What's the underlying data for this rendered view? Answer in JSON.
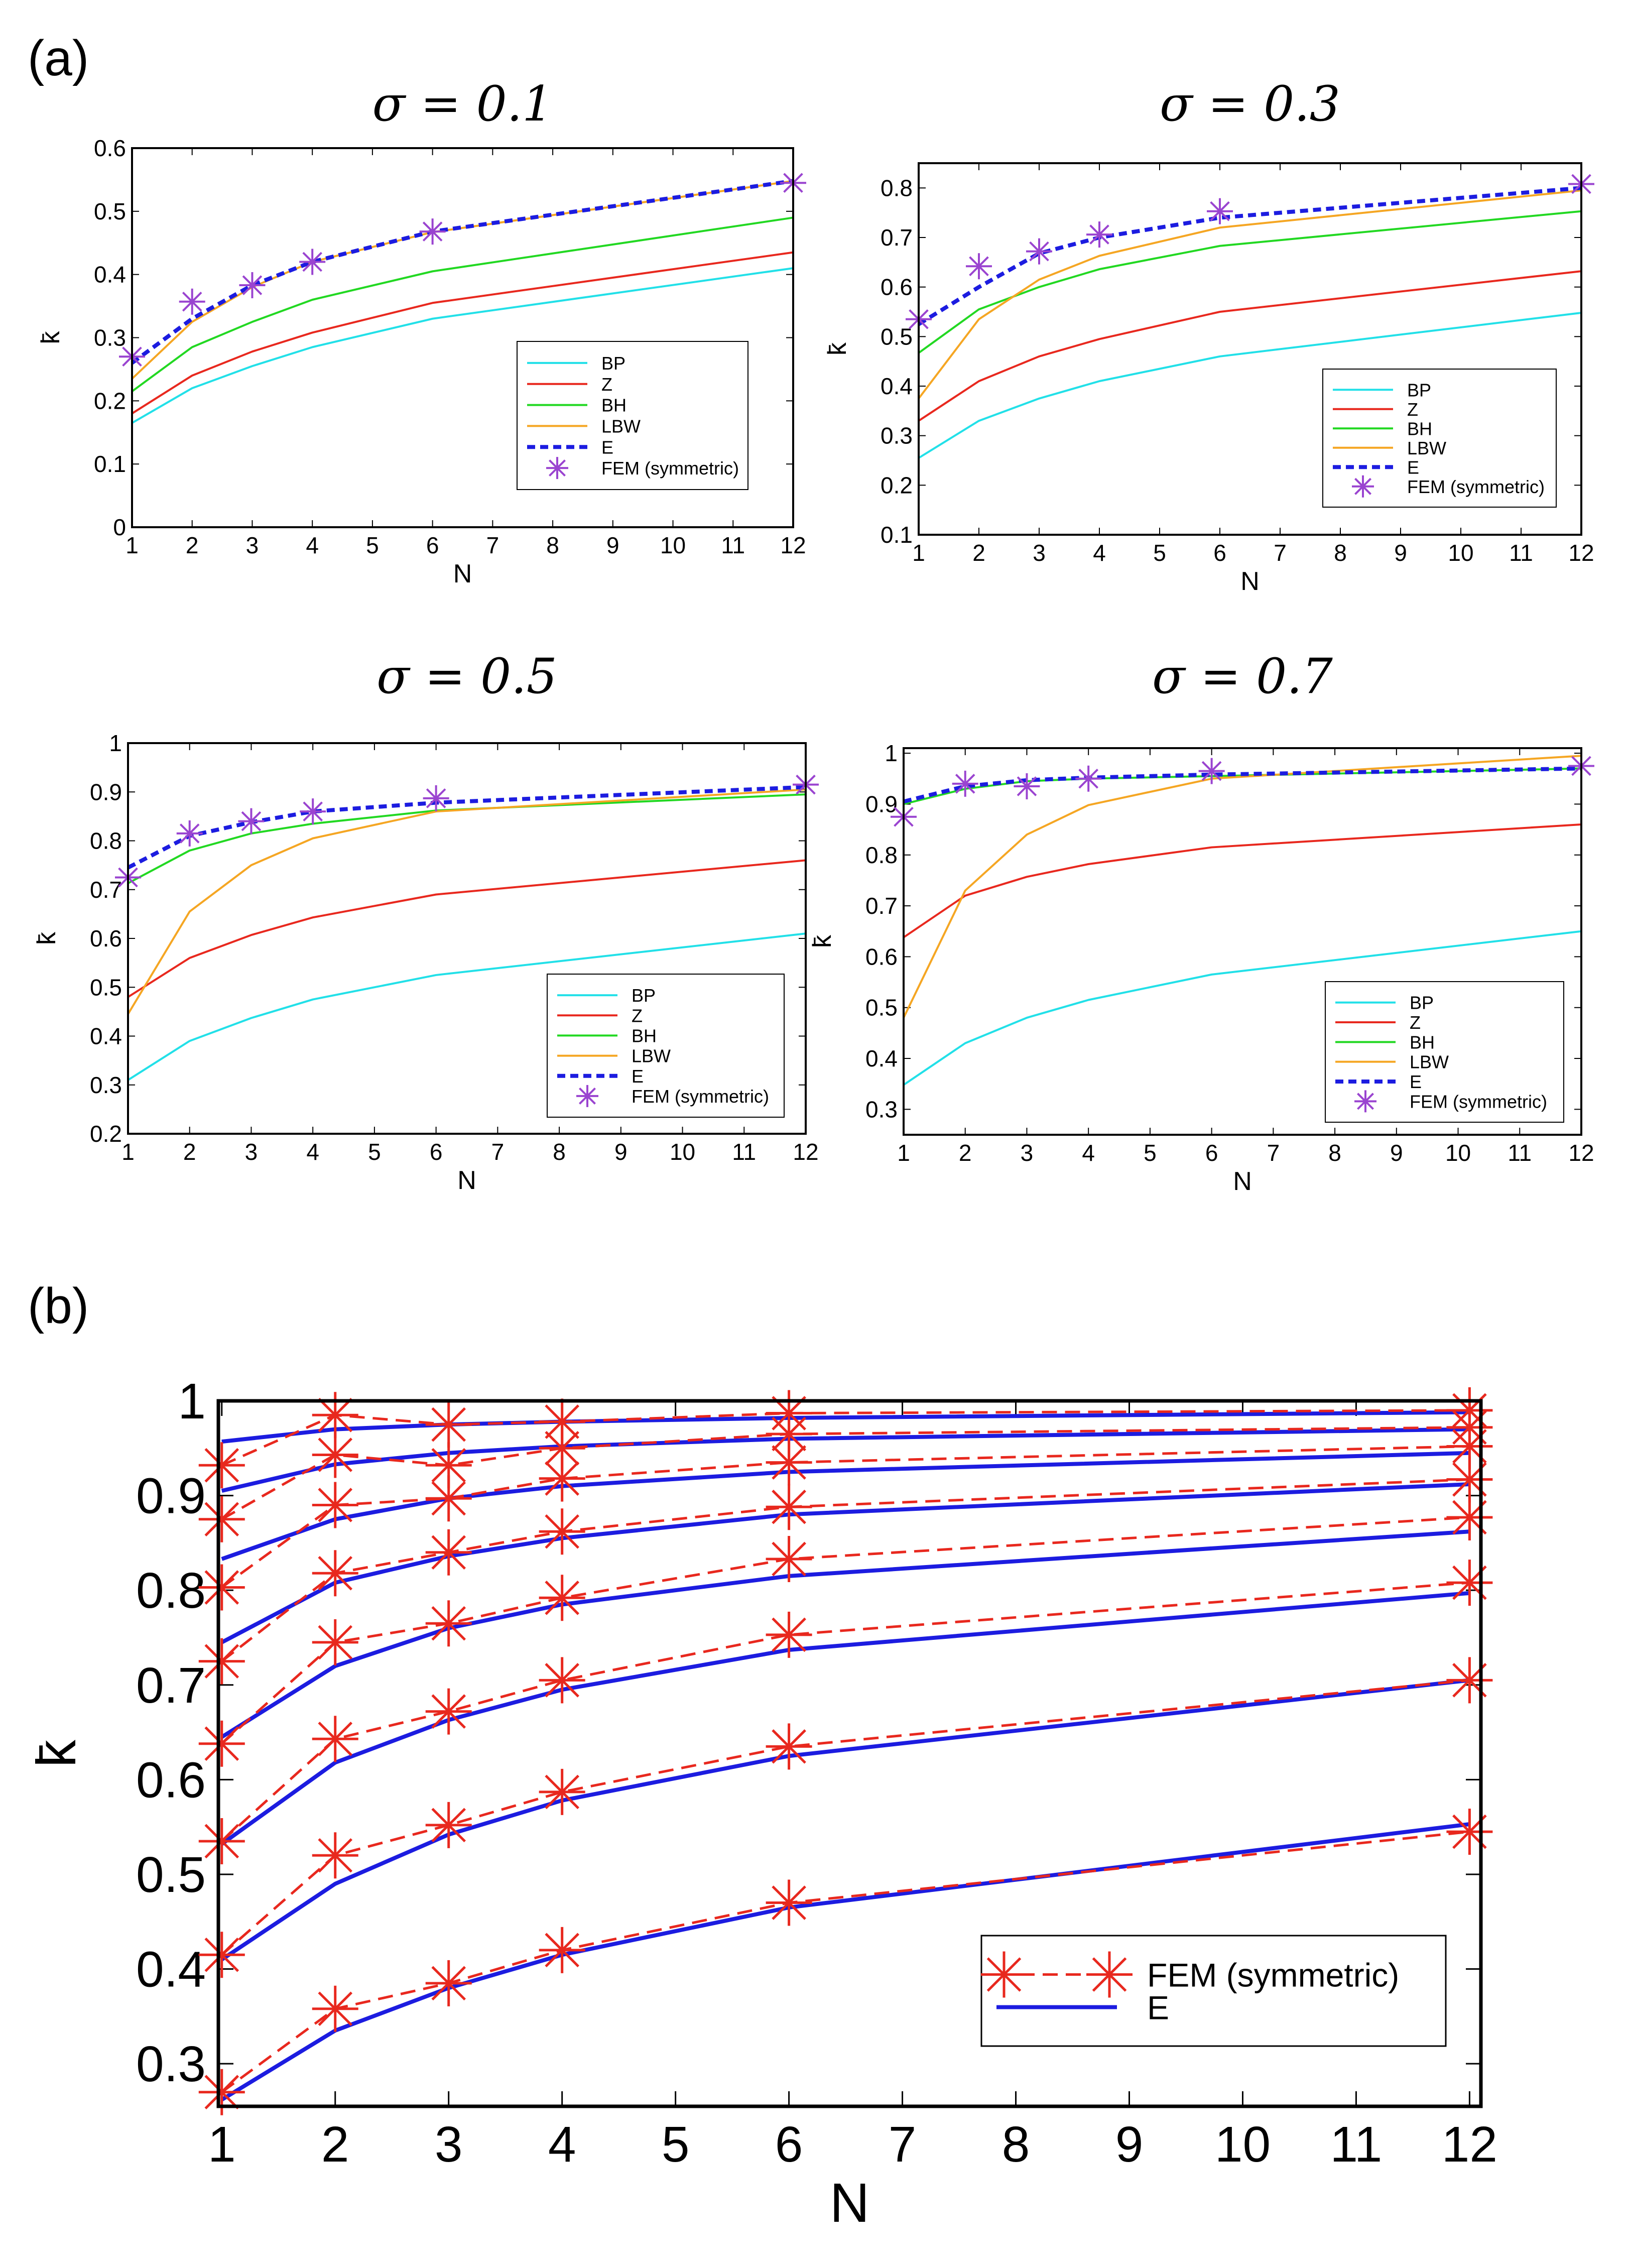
{
  "panel_labels": {
    "a": "(a)",
    "b": "(b)"
  },
  "chart_data": [
    {
      "type": "line",
      "title": "σ = 0.1",
      "xlabel": "N",
      "ylabel": "k̄",
      "x_ticks": [
        1,
        2,
        3,
        4,
        5,
        6,
        7,
        8,
        9,
        10,
        11,
        12
      ],
      "y_ticks": [
        0,
        0.1,
        0.2,
        0.3,
        0.4,
        0.5,
        0.6
      ],
      "xlim": [
        1,
        12
      ],
      "ylim": [
        0,
        0.6
      ],
      "legend_position": "bottom-right",
      "series": [
        {
          "name": "BP",
          "color": "#22e0e8",
          "style": "solid",
          "x": [
            1,
            2,
            3,
            4,
            6,
            12
          ],
          "y": [
            0.165,
            0.22,
            0.255,
            0.285,
            0.33,
            0.41
          ]
        },
        {
          "name": "Z",
          "color": "#e8281e",
          "style": "solid",
          "x": [
            1,
            2,
            3,
            4,
            6,
            12
          ],
          "y": [
            0.18,
            0.24,
            0.278,
            0.308,
            0.355,
            0.435
          ]
        },
        {
          "name": "BH",
          "color": "#22d822",
          "style": "solid",
          "x": [
            1,
            2,
            3,
            4,
            6,
            12
          ],
          "y": [
            0.215,
            0.285,
            0.325,
            0.36,
            0.405,
            0.49
          ]
        },
        {
          "name": "LBW",
          "color": "#f5a623",
          "style": "solid",
          "x": [
            1,
            2,
            3,
            4,
            6,
            12
          ],
          "y": [
            0.235,
            0.325,
            0.38,
            0.42,
            0.467,
            0.548
          ]
        },
        {
          "name": "E",
          "color": "#1c1ce0",
          "style": "dashed",
          "x": [
            1,
            2,
            3,
            4,
            6,
            12
          ],
          "y": [
            0.26,
            0.33,
            0.383,
            0.42,
            0.468,
            0.548
          ]
        },
        {
          "name": "FEM (symmetric)",
          "color": "#9a44d0",
          "style": "marker",
          "x": [
            1,
            2,
            3,
            4,
            6,
            12
          ],
          "y": [
            0.27,
            0.357,
            0.383,
            0.42,
            0.468,
            0.545
          ]
        }
      ]
    },
    {
      "type": "line",
      "title": "σ = 0.3",
      "xlabel": "N",
      "ylabel": "k̄",
      "x_ticks": [
        1,
        2,
        3,
        4,
        5,
        6,
        7,
        8,
        9,
        10,
        11,
        12
      ],
      "y_ticks": [
        0.1,
        0.2,
        0.3,
        0.4,
        0.5,
        0.6,
        0.7,
        0.8
      ],
      "xlim": [
        1,
        12
      ],
      "ylim": [
        0.1,
        0.85
      ],
      "legend_position": "bottom-right",
      "series": [
        {
          "name": "BP",
          "color": "#22e0e8",
          "style": "solid",
          "x": [
            1,
            2,
            3,
            4,
            6,
            12
          ],
          "y": [
            0.255,
            0.33,
            0.375,
            0.41,
            0.46,
            0.548
          ]
        },
        {
          "name": "Z",
          "color": "#e8281e",
          "style": "solid",
          "x": [
            1,
            2,
            3,
            4,
            6,
            12
          ],
          "y": [
            0.33,
            0.41,
            0.46,
            0.495,
            0.55,
            0.632
          ]
        },
        {
          "name": "BH",
          "color": "#22d822",
          "style": "solid",
          "x": [
            1,
            2,
            3,
            4,
            6,
            12
          ],
          "y": [
            0.467,
            0.555,
            0.6,
            0.636,
            0.683,
            0.753
          ]
        },
        {
          "name": "LBW",
          "color": "#f5a623",
          "style": "solid",
          "x": [
            1,
            2,
            3,
            4,
            6,
            12
          ],
          "y": [
            0.375,
            0.535,
            0.615,
            0.663,
            0.72,
            0.795
          ]
        },
        {
          "name": "E",
          "color": "#1c1ce0",
          "style": "dashed",
          "x": [
            1,
            2,
            3,
            4,
            6,
            12
          ],
          "y": [
            0.525,
            0.6,
            0.668,
            0.7,
            0.74,
            0.8
          ]
        },
        {
          "name": "FEM (symmetric)",
          "color": "#9a44d0",
          "style": "marker",
          "x": [
            1,
            2,
            3,
            4,
            6,
            12
          ],
          "y": [
            0.535,
            0.642,
            0.672,
            0.706,
            0.753,
            0.808
          ]
        }
      ]
    },
    {
      "type": "line",
      "title": "σ = 0.5",
      "xlabel": "N",
      "ylabel": "k̄",
      "x_ticks": [
        1,
        2,
        3,
        4,
        5,
        6,
        7,
        8,
        9,
        10,
        11,
        12
      ],
      "y_ticks": [
        0.2,
        0.3,
        0.4,
        0.5,
        0.6,
        0.7,
        0.8,
        0.9,
        1
      ],
      "xlim": [
        1,
        12
      ],
      "ylim": [
        0.2,
        1
      ],
      "legend_position": "bottom-right",
      "series": [
        {
          "name": "BP",
          "color": "#22e0e8",
          "style": "solid",
          "x": [
            1,
            2,
            3,
            4,
            6,
            12
          ],
          "y": [
            0.31,
            0.39,
            0.437,
            0.475,
            0.525,
            0.61
          ]
        },
        {
          "name": "Z",
          "color": "#e8281e",
          "style": "solid",
          "x": [
            1,
            2,
            3,
            4,
            6,
            12
          ],
          "y": [
            0.48,
            0.56,
            0.607,
            0.643,
            0.69,
            0.76
          ]
        },
        {
          "name": "BH",
          "color": "#22d822",
          "style": "solid",
          "x": [
            1,
            2,
            3,
            4,
            6,
            12
          ],
          "y": [
            0.713,
            0.78,
            0.815,
            0.835,
            0.862,
            0.895
          ]
        },
        {
          "name": "LBW",
          "color": "#f5a623",
          "style": "solid",
          "x": [
            1,
            2,
            3,
            4,
            6,
            12
          ],
          "y": [
            0.445,
            0.655,
            0.75,
            0.805,
            0.86,
            0.905
          ]
        },
        {
          "name": "E",
          "color": "#1c1ce0",
          "style": "dashed",
          "x": [
            1,
            2,
            3,
            4,
            6,
            12
          ],
          "y": [
            0.745,
            0.81,
            0.838,
            0.86,
            0.878,
            0.91
          ]
        },
        {
          "name": "FEM (symmetric)",
          "color": "#9a44d0",
          "style": "marker",
          "x": [
            1,
            2,
            3,
            4,
            6,
            12
          ],
          "y": [
            0.725,
            0.815,
            0.84,
            0.86,
            0.887,
            0.915
          ]
        }
      ]
    },
    {
      "type": "line",
      "title": "σ = 0.7",
      "xlabel": "N",
      "ylabel": "k̄",
      "x_ticks": [
        1,
        2,
        3,
        4,
        5,
        6,
        7,
        8,
        9,
        10,
        11,
        12
      ],
      "y_ticks": [
        0.3,
        0.4,
        0.5,
        0.6,
        0.7,
        0.8,
        0.9,
        1
      ],
      "xlim": [
        1,
        12
      ],
      "ylim": [
        0.25,
        1.01
      ],
      "legend_position": "bottom-right",
      "series": [
        {
          "name": "BP",
          "color": "#22e0e8",
          "style": "solid",
          "x": [
            1,
            2,
            3,
            4,
            6,
            12
          ],
          "y": [
            0.348,
            0.43,
            0.48,
            0.515,
            0.565,
            0.65
          ]
        },
        {
          "name": "Z",
          "color": "#e8281e",
          "style": "solid",
          "x": [
            1,
            2,
            3,
            4,
            6,
            12
          ],
          "y": [
            0.638,
            0.72,
            0.757,
            0.782,
            0.815,
            0.86
          ]
        },
        {
          "name": "BH",
          "color": "#22d822",
          "style": "solid",
          "x": [
            1,
            2,
            3,
            4,
            6,
            12
          ],
          "y": [
            0.9,
            0.93,
            0.945,
            0.95,
            0.955,
            0.97
          ]
        },
        {
          "name": "LBW",
          "color": "#f5a623",
          "style": "solid",
          "x": [
            1,
            2,
            3,
            4,
            6,
            12
          ],
          "y": [
            0.48,
            0.73,
            0.84,
            0.898,
            0.95,
            0.995
          ]
        },
        {
          "name": "E",
          "color": "#1c1ce0",
          "style": "dashed",
          "x": [
            1,
            2,
            3,
            4,
            6,
            12
          ],
          "y": [
            0.905,
            0.935,
            0.947,
            0.952,
            0.958,
            0.97
          ]
        },
        {
          "name": "FEM (symmetric)",
          "color": "#9a44d0",
          "style": "marker",
          "x": [
            1,
            2,
            3,
            4,
            6,
            12
          ],
          "y": [
            0.875,
            0.94,
            0.935,
            0.95,
            0.965,
            0.975
          ]
        }
      ]
    },
    {
      "type": "line",
      "title": "",
      "xlabel": "N",
      "ylabel": "k̄",
      "x_ticks": [
        1,
        2,
        3,
        4,
        5,
        6,
        7,
        8,
        9,
        10,
        11,
        12
      ],
      "y_ticks": [
        0.3,
        0.4,
        0.5,
        0.6,
        0.7,
        0.8,
        0.9,
        1
      ],
      "xlim": [
        0.97,
        12.1
      ],
      "ylim": [
        0.255,
        1.0
      ],
      "legend_position": "bottom-right",
      "legend": [
        {
          "name": "FEM (symmetric)",
          "color": "#e8281e",
          "style": "dashed-marker"
        },
        {
          "name": "E",
          "color": "#1c1ce0",
          "style": "solid"
        }
      ],
      "series": [
        {
          "name": "E",
          "color": "#1c1ce0",
          "style": "solid",
          "x": [
            1,
            2,
            3,
            4,
            6,
            12
          ],
          "y": [
            0.262,
            0.335,
            0.38,
            0.415,
            0.465,
            0.553
          ]
        },
        {
          "name": "E",
          "color": "#1c1ce0",
          "style": "solid",
          "x": [
            1,
            2,
            3,
            4,
            6,
            12
          ],
          "y": [
            0.41,
            0.49,
            0.542,
            0.578,
            0.625,
            0.705
          ]
        },
        {
          "name": "E",
          "color": "#1c1ce0",
          "style": "solid",
          "x": [
            1,
            2,
            3,
            4,
            6,
            12
          ],
          "y": [
            0.532,
            0.618,
            0.663,
            0.695,
            0.737,
            0.797
          ]
        },
        {
          "name": "E",
          "color": "#1c1ce0",
          "style": "solid",
          "x": [
            1,
            2,
            3,
            4,
            6,
            12
          ],
          "y": [
            0.645,
            0.72,
            0.76,
            0.785,
            0.815,
            0.862
          ]
        },
        {
          "name": "E",
          "color": "#1c1ce0",
          "style": "solid",
          "x": [
            1,
            2,
            3,
            4,
            6,
            12
          ],
          "y": [
            0.745,
            0.808,
            0.836,
            0.855,
            0.88,
            0.912
          ]
        },
        {
          "name": "E",
          "color": "#1c1ce0",
          "style": "solid",
          "x": [
            1,
            2,
            3,
            4,
            6,
            12
          ],
          "y": [
            0.833,
            0.875,
            0.897,
            0.91,
            0.925,
            0.945
          ]
        },
        {
          "name": "E",
          "color": "#1c1ce0",
          "style": "solid",
          "x": [
            1,
            2,
            3,
            4,
            6,
            12
          ],
          "y": [
            0.905,
            0.933,
            0.945,
            0.952,
            0.96,
            0.97
          ]
        },
        {
          "name": "E",
          "color": "#1c1ce0",
          "style": "solid",
          "x": [
            1,
            2,
            3,
            4,
            6,
            12
          ],
          "y": [
            0.957,
            0.97,
            0.975,
            0.978,
            0.982,
            0.988
          ]
        },
        {
          "name": "FEM (symmetric)",
          "color": "#e8281e",
          "style": "dashed-marker",
          "x": [
            1,
            2,
            3,
            4,
            6,
            12
          ],
          "y": [
            0.27,
            0.358,
            0.385,
            0.42,
            0.47,
            0.545
          ]
        },
        {
          "name": "FEM (symmetric)",
          "color": "#e8281e",
          "style": "dashed-marker",
          "x": [
            1,
            2,
            3,
            4,
            6,
            12
          ],
          "y": [
            0.415,
            0.52,
            0.552,
            0.587,
            0.635,
            0.705
          ]
        },
        {
          "name": "FEM (symmetric)",
          "color": "#e8281e",
          "style": "dashed-marker",
          "x": [
            1,
            2,
            3,
            4,
            6,
            12
          ],
          "y": [
            0.535,
            0.643,
            0.672,
            0.705,
            0.753,
            0.808
          ]
        },
        {
          "name": "FEM (symmetric)",
          "color": "#e8281e",
          "style": "dashed-marker",
          "x": [
            1,
            2,
            3,
            4,
            6,
            12
          ],
          "y": [
            0.638,
            0.745,
            0.765,
            0.792,
            0.833,
            0.877
          ]
        },
        {
          "name": "FEM (symmetric)",
          "color": "#e8281e",
          "style": "dashed-marker",
          "x": [
            1,
            2,
            3,
            4,
            6,
            12
          ],
          "y": [
            0.725,
            0.818,
            0.84,
            0.862,
            0.888,
            0.917
          ]
        },
        {
          "name": "FEM (symmetric)",
          "color": "#e8281e",
          "style": "dashed-marker",
          "x": [
            1,
            2,
            3,
            4,
            6,
            12
          ],
          "y": [
            0.803,
            0.89,
            0.897,
            0.918,
            0.935,
            0.952
          ]
        },
        {
          "name": "FEM (symmetric)",
          "color": "#e8281e",
          "style": "dashed-marker",
          "x": [
            1,
            2,
            3,
            4,
            6,
            12
          ],
          "y": [
            0.875,
            0.943,
            0.932,
            0.95,
            0.965,
            0.972
          ]
        },
        {
          "name": "FEM (symmetric)",
          "color": "#e8281e",
          "style": "dashed-marker",
          "x": [
            1,
            2,
            3,
            4,
            6,
            12
          ],
          "y": [
            0.932,
            0.985,
            0.975,
            0.978,
            0.987,
            0.99
          ]
        }
      ]
    }
  ]
}
